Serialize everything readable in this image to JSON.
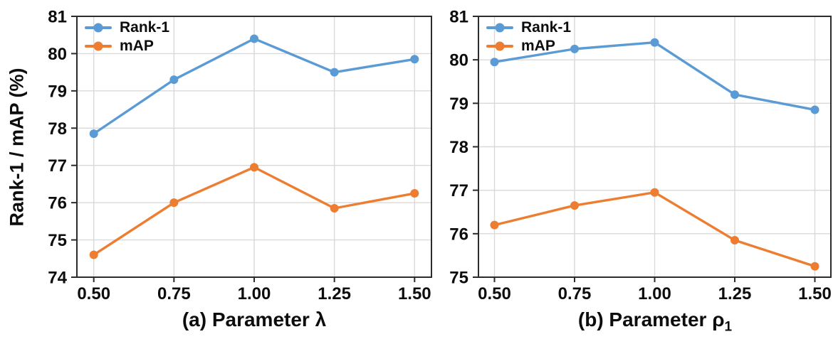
{
  "figure": {
    "y_axis_title": "Rank-1 / mAP (%)",
    "colors": {
      "rank1": "#5B9BD5",
      "map": "#ED7D31",
      "grid": "#D9D9D9",
      "axis": "#2b2b2b",
      "text": "#0d0d0d",
      "background": "#ffffff"
    }
  },
  "chart_data": [
    {
      "type": "line",
      "title": "(a) Parameter λ",
      "xlabel_main": "(a) Parameter λ",
      "xlabel_sub": "",
      "ylabel": "Rank-1 / mAP (%)",
      "x": [
        0.5,
        0.75,
        1.0,
        1.25,
        1.5
      ],
      "x_ticklabels": [
        "0.50",
        "0.75",
        "1.00",
        "1.25",
        "1.50"
      ],
      "ylim": [
        74,
        81
      ],
      "yticks": [
        74,
        75,
        76,
        77,
        78,
        79,
        80,
        81
      ],
      "grid": true,
      "legend_position": "upper left",
      "series": [
        {
          "name": "Rank-1",
          "color": "#5B9BD5",
          "values": [
            77.85,
            79.3,
            80.4,
            79.5,
            79.85
          ]
        },
        {
          "name": "mAP",
          "color": "#ED7D31",
          "values": [
            74.6,
            76.0,
            76.95,
            75.85,
            76.25
          ]
        }
      ]
    },
    {
      "type": "line",
      "title": "(b) Parameter ρ1",
      "xlabel_main": "(b) Parameter ρ",
      "xlabel_sub": "1",
      "ylabel": "Rank-1 / mAP (%)",
      "x": [
        0.5,
        0.75,
        1.0,
        1.25,
        1.5
      ],
      "x_ticklabels": [
        "0.50",
        "0.75",
        "1.00",
        "1.25",
        "1.50"
      ],
      "ylim": [
        75,
        81
      ],
      "yticks": [
        75,
        76,
        77,
        78,
        79,
        80,
        81
      ],
      "grid": true,
      "legend_position": "upper left",
      "series": [
        {
          "name": "Rank-1",
          "color": "#5B9BD5",
          "values": [
            79.95,
            80.25,
            80.4,
            79.2,
            78.85
          ]
        },
        {
          "name": "mAP",
          "color": "#ED7D31",
          "values": [
            76.2,
            76.65,
            76.95,
            75.85,
            75.25
          ]
        }
      ]
    }
  ]
}
